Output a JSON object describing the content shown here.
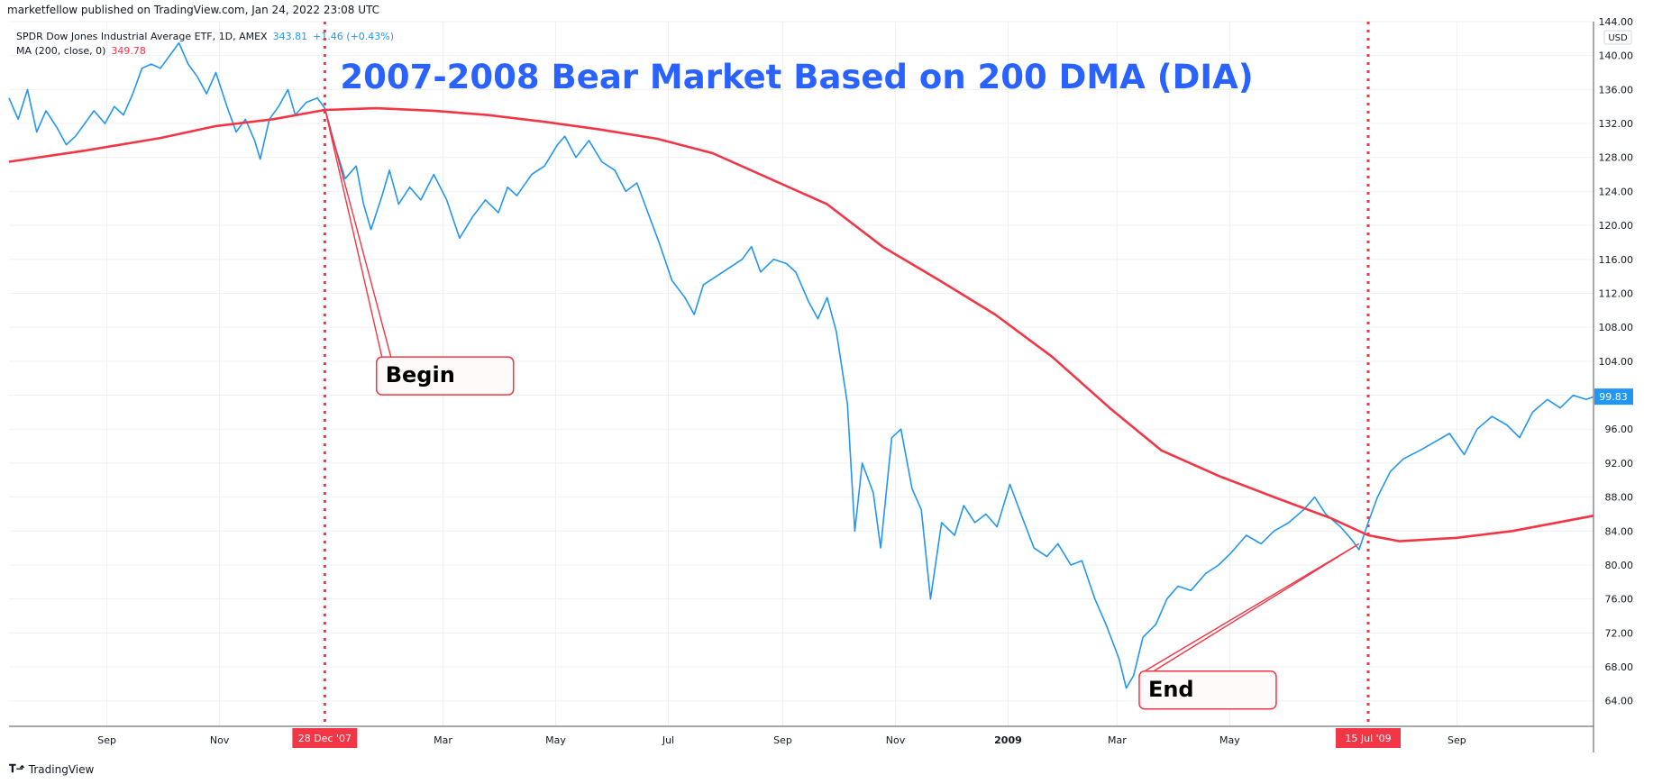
{
  "header": {
    "publisher": "marketfellow published on TradingView.com, Jan 24, 2022 23:08 UTC",
    "symbol_line": "SPDR Dow Jones Industrial Average ETF, 1D, AMEX",
    "symbol_value": "343.81",
    "symbol_change": "+1.46 (+0.43%)",
    "ma_label": "MA (200, close, 0)",
    "ma_value": "349.78"
  },
  "footer": {
    "logo": "TradingView"
  },
  "colors": {
    "price": "#2196f3",
    "ma": "#f23645",
    "title": "#2962ff",
    "grid": "#eef0f3"
  },
  "chart_data": {
    "type": "line",
    "title": "2007-2008 Bear Market Based on 200 DMA (DIA)",
    "ylim": [
      61.0,
      144.0
    ],
    "currency": "USD",
    "y_ticks": [
      "64.00",
      "68.00",
      "72.00",
      "76.00",
      "80.00",
      "84.00",
      "88.00",
      "92.00",
      "96.00",
      "100.00",
      "104.00",
      "108.00",
      "112.00",
      "116.00",
      "120.00",
      "124.00",
      "128.00",
      "132.00",
      "136.00",
      "140.00",
      "144.00"
    ],
    "x_range": [
      "2007-07-10",
      "2009-11-14"
    ],
    "x_ticks": [
      {
        "date": "2007-09-01",
        "label": "Sep"
      },
      {
        "date": "2007-11-01",
        "label": "Nov"
      },
      {
        "date": "2008-03-01",
        "label": "Mar"
      },
      {
        "date": "2008-05-01",
        "label": "May"
      },
      {
        "date": "2008-07-01",
        "label": "Jul"
      },
      {
        "date": "2008-09-01",
        "label": "Sep"
      },
      {
        "date": "2008-11-01",
        "label": "Nov"
      },
      {
        "date": "2009-01-01",
        "label": "2009",
        "bold": true
      },
      {
        "date": "2009-03-01",
        "label": "Mar"
      },
      {
        "date": "2009-05-01",
        "label": "May"
      },
      {
        "date": "2009-09-01",
        "label": "Sep"
      }
    ],
    "last_price_label": "99.83",
    "markers": [
      {
        "date": "2007-12-28",
        "label": "28 Dec '07"
      },
      {
        "date": "2009-07-15",
        "label": "15 Jul '09"
      }
    ],
    "annotations": [
      {
        "text": "Begin",
        "date": "2008-01-25",
        "value": 104.5,
        "target_date": "2007-12-28",
        "target_value": 133.8
      },
      {
        "text": "End",
        "date": "2009-03-13",
        "value": 67.5,
        "target_date": "2009-07-10",
        "target_value": 82.5
      }
    ],
    "series": [
      {
        "key": "price",
        "points": [
          [
            "2007-07-10",
            135.0
          ],
          [
            "2007-07-15",
            132.5
          ],
          [
            "2007-07-20",
            136.0
          ],
          [
            "2007-07-25",
            131.0
          ],
          [
            "2007-07-30",
            133.5
          ],
          [
            "2007-08-05",
            131.5
          ],
          [
            "2007-08-10",
            129.5
          ],
          [
            "2007-08-15",
            130.5
          ],
          [
            "2007-08-20",
            132.0
          ],
          [
            "2007-08-25",
            133.5
          ],
          [
            "2007-08-31",
            132.0
          ],
          [
            "2007-09-05",
            134.0
          ],
          [
            "2007-09-10",
            133.0
          ],
          [
            "2007-09-15",
            135.5
          ],
          [
            "2007-09-20",
            138.5
          ],
          [
            "2007-09-25",
            139.0
          ],
          [
            "2007-09-30",
            138.5
          ],
          [
            "2007-10-05",
            140.0
          ],
          [
            "2007-10-10",
            141.5
          ],
          [
            "2007-10-15",
            139.0
          ],
          [
            "2007-10-20",
            137.5
          ],
          [
            "2007-10-25",
            135.5
          ],
          [
            "2007-10-30",
            138.0
          ],
          [
            "2007-11-05",
            134.0
          ],
          [
            "2007-11-10",
            131.0
          ],
          [
            "2007-11-15",
            132.5
          ],
          [
            "2007-11-20",
            130.0
          ],
          [
            "2007-11-23",
            127.8
          ],
          [
            "2007-11-28",
            132.5
          ],
          [
            "2007-12-03",
            134.0
          ],
          [
            "2007-12-08",
            136.0
          ],
          [
            "2007-12-12",
            133.0
          ],
          [
            "2007-12-18",
            134.5
          ],
          [
            "2007-12-24",
            135.0
          ],
          [
            "2007-12-28",
            133.8
          ],
          [
            "2008-01-03",
            129.0
          ],
          [
            "2008-01-08",
            125.5
          ],
          [
            "2008-01-14",
            127.0
          ],
          [
            "2008-01-18",
            122.5
          ],
          [
            "2008-01-22",
            119.5
          ],
          [
            "2008-01-28",
            123.5
          ],
          [
            "2008-02-01",
            126.5
          ],
          [
            "2008-02-06",
            122.5
          ],
          [
            "2008-02-12",
            124.5
          ],
          [
            "2008-02-18",
            123.0
          ],
          [
            "2008-02-25",
            126.0
          ],
          [
            "2008-03-03",
            123.0
          ],
          [
            "2008-03-10",
            118.5
          ],
          [
            "2008-03-17",
            121.0
          ],
          [
            "2008-03-24",
            123.0
          ],
          [
            "2008-03-31",
            121.5
          ],
          [
            "2008-04-05",
            124.5
          ],
          [
            "2008-04-10",
            123.5
          ],
          [
            "2008-04-18",
            126.0
          ],
          [
            "2008-04-25",
            127.0
          ],
          [
            "2008-05-02",
            129.5
          ],
          [
            "2008-05-06",
            130.5
          ],
          [
            "2008-05-12",
            128.0
          ],
          [
            "2008-05-19",
            130.0
          ],
          [
            "2008-05-26",
            127.5
          ],
          [
            "2008-06-02",
            126.5
          ],
          [
            "2008-06-08",
            124.0
          ],
          [
            "2008-06-14",
            125.0
          ],
          [
            "2008-06-20",
            121.5
          ],
          [
            "2008-06-26",
            118.0
          ],
          [
            "2008-07-03",
            113.5
          ],
          [
            "2008-07-10",
            111.5
          ],
          [
            "2008-07-15",
            109.5
          ],
          [
            "2008-07-20",
            113.0
          ],
          [
            "2008-07-27",
            114.0
          ],
          [
            "2008-08-03",
            115.0
          ],
          [
            "2008-08-10",
            116.0
          ],
          [
            "2008-08-15",
            117.5
          ],
          [
            "2008-08-20",
            114.5
          ],
          [
            "2008-08-27",
            116.0
          ],
          [
            "2008-09-03",
            115.5
          ],
          [
            "2008-09-08",
            114.5
          ],
          [
            "2008-09-15",
            111.0
          ],
          [
            "2008-09-20",
            109.0
          ],
          [
            "2008-09-25",
            111.5
          ],
          [
            "2008-09-30",
            107.5
          ],
          [
            "2008-10-06",
            99.0
          ],
          [
            "2008-10-10",
            84.0
          ],
          [
            "2008-10-14",
            92.0
          ],
          [
            "2008-10-20",
            88.5
          ],
          [
            "2008-10-24",
            82.0
          ],
          [
            "2008-10-30",
            95.0
          ],
          [
            "2008-11-04",
            96.0
          ],
          [
            "2008-11-10",
            89.0
          ],
          [
            "2008-11-15",
            86.5
          ],
          [
            "2008-11-20",
            76.0
          ],
          [
            "2008-11-26",
            85.0
          ],
          [
            "2008-12-03",
            83.5
          ],
          [
            "2008-12-08",
            87.0
          ],
          [
            "2008-12-14",
            85.0
          ],
          [
            "2008-12-20",
            86.0
          ],
          [
            "2008-12-26",
            84.5
          ],
          [
            "2009-01-02",
            89.5
          ],
          [
            "2009-01-08",
            86.0
          ],
          [
            "2009-01-15",
            82.0
          ],
          [
            "2009-01-22",
            81.0
          ],
          [
            "2009-01-28",
            82.5
          ],
          [
            "2009-02-04",
            80.0
          ],
          [
            "2009-02-10",
            80.5
          ],
          [
            "2009-02-17",
            76.0
          ],
          [
            "2009-02-23",
            73.0
          ],
          [
            "2009-03-02",
            69.0
          ],
          [
            "2009-03-06",
            65.5
          ],
          [
            "2009-03-10",
            67.0
          ],
          [
            "2009-03-15",
            71.5
          ],
          [
            "2009-03-22",
            73.0
          ],
          [
            "2009-03-28",
            76.0
          ],
          [
            "2009-04-03",
            77.5
          ],
          [
            "2009-04-10",
            77.0
          ],
          [
            "2009-04-18",
            79.0
          ],
          [
            "2009-04-25",
            80.0
          ],
          [
            "2009-05-02",
            81.5
          ],
          [
            "2009-05-10",
            83.5
          ],
          [
            "2009-05-18",
            82.5
          ],
          [
            "2009-05-25",
            84.0
          ],
          [
            "2009-06-02",
            85.0
          ],
          [
            "2009-06-10",
            86.5
          ],
          [
            "2009-06-16",
            88.0
          ],
          [
            "2009-06-22",
            86.0
          ],
          [
            "2009-06-30",
            84.5
          ],
          [
            "2009-07-06",
            83.0
          ],
          [
            "2009-07-10",
            81.8
          ],
          [
            "2009-07-15",
            85.0
          ],
          [
            "2009-07-20",
            88.0
          ],
          [
            "2009-07-27",
            91.0
          ],
          [
            "2009-08-03",
            92.5
          ],
          [
            "2009-08-12",
            93.5
          ],
          [
            "2009-08-20",
            94.5
          ],
          [
            "2009-08-28",
            95.5
          ],
          [
            "2009-09-05",
            93.0
          ],
          [
            "2009-09-12",
            96.0
          ],
          [
            "2009-09-20",
            97.5
          ],
          [
            "2009-09-28",
            96.5
          ],
          [
            "2009-10-05",
            95.0
          ],
          [
            "2009-10-12",
            98.0
          ],
          [
            "2009-10-20",
            99.5
          ],
          [
            "2009-10-27",
            98.5
          ],
          [
            "2009-11-03",
            100.0
          ],
          [
            "2009-11-10",
            99.5
          ],
          [
            "2009-11-14",
            99.83
          ]
        ]
      },
      {
        "key": "ma",
        "points": [
          [
            "2007-07-10",
            127.5
          ],
          [
            "2007-08-20",
            128.8
          ],
          [
            "2007-09-30",
            130.3
          ],
          [
            "2007-10-30",
            131.7
          ],
          [
            "2007-11-30",
            132.5
          ],
          [
            "2007-12-28",
            133.6
          ],
          [
            "2008-01-25",
            133.8
          ],
          [
            "2008-02-25",
            133.5
          ],
          [
            "2008-03-25",
            133.0
          ],
          [
            "2008-04-25",
            132.2
          ],
          [
            "2008-05-25",
            131.3
          ],
          [
            "2008-06-25",
            130.2
          ],
          [
            "2008-07-25",
            128.5
          ],
          [
            "2008-08-25",
            125.5
          ],
          [
            "2008-09-25",
            122.5
          ],
          [
            "2008-10-25",
            117.5
          ],
          [
            "2008-11-25",
            113.5
          ],
          [
            "2008-12-25",
            109.5
          ],
          [
            "2009-01-25",
            104.5
          ],
          [
            "2009-02-25",
            98.5
          ],
          [
            "2009-03-25",
            93.5
          ],
          [
            "2009-04-25",
            90.5
          ],
          [
            "2009-05-25",
            88.0
          ],
          [
            "2009-06-25",
            85.5
          ],
          [
            "2009-07-15",
            83.5
          ],
          [
            "2009-08-01",
            82.8
          ],
          [
            "2009-09-01",
            83.2
          ],
          [
            "2009-10-01",
            84.0
          ],
          [
            "2009-11-14",
            85.8
          ]
        ]
      }
    ]
  }
}
